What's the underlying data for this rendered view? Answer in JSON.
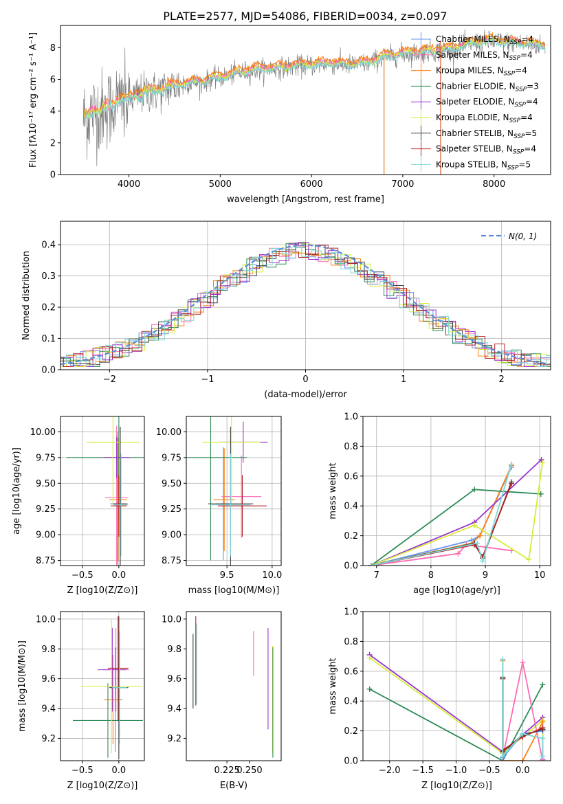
{
  "title": "PLATE=2577, MJD=54086, FIBERID=0034, z=0.097",
  "colors": {
    "chabrier_miles": "#6495ed",
    "salpeter_miles": "#ff69b4",
    "kroupa_miles": "#ff7f0e",
    "chabrier_elodie": "#2e8b57",
    "salpeter_elodie": "#9932cc",
    "kroupa_elodie": "#d4ed3a",
    "chabrier_stelib": "#404040",
    "salpeter_stelib": "#b22222",
    "kroupa_stelib": "#7fd6d6",
    "data": "#808080",
    "gaussian": "#5b8dd9"
  },
  "chart_data": [
    {
      "panel": "spectrum",
      "type": "line",
      "title": "PLATE=2577, MJD=54086, FIBERID=0034, z=0.097",
      "xlabel": "wavelength [Angstrom, rest frame]",
      "ylabel": "Flux [fλ10⁻¹⁷ erg cm⁻² s⁻¹ A⁻¹]",
      "xlim": [
        3250,
        8620
      ],
      "ylim": [
        0,
        9.4
      ],
      "xticks": [
        4000,
        5000,
        6000,
        7000,
        8000
      ],
      "yticks": [
        0,
        2,
        4,
        6,
        8
      ],
      "grid": false,
      "legend_position": "right",
      "legend": [
        {
          "label": "Chabrier MILES, N",
          "sub": "SSP",
          "tail": "=4",
          "key": "chabrier_miles"
        },
        {
          "label": "Salpeter MILES, N",
          "sub": "SSP",
          "tail": "=4",
          "key": "salpeter_miles"
        },
        {
          "label": "Kroupa MILES, N",
          "sub": "SSP",
          "tail": "=4",
          "key": "kroupa_miles"
        },
        {
          "label": "Chabrier ELODIE, N",
          "sub": "SSP",
          "tail": "=3",
          "key": "chabrier_elodie"
        },
        {
          "label": "Salpeter ELODIE, N",
          "sub": "SSP",
          "tail": "=4",
          "key": "salpeter_elodie"
        },
        {
          "label": "Kroupa ELODIE, N",
          "sub": "SSP",
          "tail": "=4",
          "key": "kroupa_elodie"
        },
        {
          "label": "Chabrier STELIB, N",
          "sub": "SSP",
          "tail": "=5",
          "key": "chabrier_stelib"
        },
        {
          "label": "Salpeter STELIB, N",
          "sub": "SSP",
          "tail": "=4",
          "key": "salpeter_stelib"
        },
        {
          "label": "Kroupa STELIB, N",
          "sub": "SSP",
          "tail": "=5",
          "key": "kroupa_stelib"
        }
      ],
      "continuum": [
        [
          3500,
          3.5
        ],
        [
          3600,
          3.9
        ],
        [
          3700,
          4.1
        ],
        [
          3800,
          4.3
        ],
        [
          3900,
          4.7
        ],
        [
          4000,
          4.7
        ],
        [
          4100,
          5.0
        ],
        [
          4200,
          5.2
        ],
        [
          4300,
          5.2
        ],
        [
          4400,
          5.4
        ],
        [
          4500,
          5.6
        ],
        [
          4600,
          5.7
        ],
        [
          4700,
          5.8
        ],
        [
          4800,
          5.8
        ],
        [
          4900,
          6.0
        ],
        [
          5000,
          6.1
        ],
        [
          5200,
          6.4
        ],
        [
          5400,
          6.6
        ],
        [
          5600,
          6.7
        ],
        [
          5800,
          6.8
        ],
        [
          6000,
          6.9
        ],
        [
          6200,
          7.0
        ],
        [
          6400,
          6.9
        ],
        [
          6600,
          7.0
        ],
        [
          6800,
          7.4
        ],
        [
          7000,
          7.6
        ],
        [
          7200,
          7.7
        ],
        [
          7400,
          7.8
        ],
        [
          7600,
          8.0
        ],
        [
          7800,
          8.3
        ],
        [
          8000,
          8.4
        ],
        [
          8200,
          8.3
        ],
        [
          8400,
          8.2
        ],
        [
          8550,
          8.1
        ]
      ]
    },
    {
      "panel": "residuals",
      "type": "line",
      "xlabel": "(data-model)/error",
      "ylabel": "Normed distribution",
      "xlim": [
        -2.5,
        2.5
      ],
      "ylim": [
        0,
        0.475
      ],
      "xticks": [
        -2,
        -1,
        0,
        1,
        2
      ],
      "yticks": [
        0.0,
        0.1,
        0.2,
        0.3,
        0.4
      ],
      "grid": true,
      "legend_position": "upper right",
      "gaussian_label": "N(0, 1)",
      "bin_width": 0.1
    },
    {
      "panel": "age_vs_Z",
      "type": "scatter",
      "xlabel": "Z [log10(Z/Z⊙)]",
      "ylabel": "age  [log10(age/yr)]",
      "xlim": [
        -0.8,
        0.35
      ],
      "ylim": [
        8.7,
        10.15
      ],
      "xticks": [
        -0.5,
        0.0
      ],
      "yticks": [
        8.75,
        9.0,
        9.25,
        9.5,
        9.75,
        10.0
      ],
      "grid": true,
      "points": [
        {
          "key": "chabrier_miles",
          "x": -0.02,
          "y": 9.3,
          "xerr": 0.1,
          "yerr": 0.7
        },
        {
          "key": "salpeter_miles",
          "x": -0.03,
          "y": 9.36,
          "xerr": 0.16,
          "yerr": 0.7
        },
        {
          "key": "kroupa_miles",
          "x": -0.01,
          "y": 9.34,
          "xerr": 0.12,
          "yerr": 0.6
        },
        {
          "key": "chabrier_elodie",
          "x": 0.0,
          "y": 9.75,
          "xerr": 0.72,
          "yerr": 0.6
        },
        {
          "key": "salpeter_elodie",
          "x": -0.03,
          "y": 9.75,
          "xerr": 0.18,
          "yerr": 0.2
        },
        {
          "key": "kroupa_elodie",
          "x": -0.08,
          "y": 9.9,
          "xerr": 0.36,
          "yerr": 0.6
        },
        {
          "key": "chabrier_stelib",
          "x": 0.02,
          "y": 9.3,
          "xerr": 0.1,
          "yerr": 0.75
        },
        {
          "key": "salpeter_stelib",
          "x": 0.0,
          "y": 9.28,
          "xerr": 0.11,
          "yerr": 0.3
        },
        {
          "key": "kroupa_stelib",
          "x": 0.03,
          "y": 9.29,
          "xerr": 0.1,
          "yerr": 0.5
        }
      ]
    },
    {
      "panel": "age_vs_mass",
      "type": "scatter",
      "xlabel": "mass [log10(M/M⊙)]",
      "ylabel": "",
      "xlim": [
        9.05,
        10.1
      ],
      "ylim": [
        8.7,
        10.15
      ],
      "xticks": [
        9.5,
        10.0
      ],
      "yticks": [
        8.75,
        9.0,
        9.25,
        9.5,
        9.75,
        10.0
      ],
      "grid": true,
      "points": [
        {
          "key": "chabrier_miles",
          "x": 9.46,
          "y": 9.3,
          "xerr": 0.08,
          "yerr": 0.55
        },
        {
          "key": "salpeter_miles",
          "x": 9.66,
          "y": 9.37,
          "xerr": 0.22,
          "yerr": 0.4
        },
        {
          "key": "kroupa_miles",
          "x": 9.47,
          "y": 9.34,
          "xerr": 0.12,
          "yerr": 0.5
        },
        {
          "key": "chabrier_elodie",
          "x": 9.32,
          "y": 9.75,
          "xerr": 0.4,
          "yerr": 1.0
        },
        {
          "key": "salpeter_elodie",
          "x": 9.68,
          "y": 9.9,
          "xerr": 0.27,
          "yerr": 0.2
        },
        {
          "key": "kroupa_elodie",
          "x": 9.55,
          "y": 9.9,
          "xerr": 0.32,
          "yerr": 0.6
        },
        {
          "key": "chabrier_stelib",
          "x": 9.54,
          "y": 9.3,
          "xerr": 0.25,
          "yerr": 0.75
        },
        {
          "key": "salpeter_stelib",
          "x": 9.67,
          "y": 9.28,
          "xerr": 0.27,
          "yerr": 0.3
        },
        {
          "key": "kroupa_stelib",
          "x": 9.54,
          "y": 9.29,
          "xerr": 0.22,
          "yerr": 0.5
        }
      ]
    },
    {
      "panel": "weight_vs_age",
      "type": "line",
      "xlabel": "age  [log10(age/yr)]",
      "ylabel": "mass weight",
      "xlim": [
        6.75,
        10.2
      ],
      "ylim": [
        0,
        1.0
      ],
      "xticks": [
        7,
        8,
        9,
        10
      ],
      "yticks": [
        0.0,
        0.2,
        0.4,
        0.6,
        0.8,
        1.0
      ],
      "grid": true,
      "series": [
        {
          "key": "chabrier_miles",
          "x": [
            6.9,
            8.75,
            8.9,
            9.48
          ],
          "y": [
            0.0,
            0.17,
            0.2,
            0.66
          ]
        },
        {
          "key": "salpeter_miles",
          "x": [
            6.9,
            8.5,
            8.65,
            9.48
          ],
          "y": [
            0.0,
            0.08,
            0.14,
            0.1
          ]
        },
        {
          "key": "kroupa_miles",
          "x": [
            6.9,
            8.75,
            8.9,
            9.48
          ],
          "y": [
            0.0,
            0.15,
            0.2,
            0.67
          ]
        },
        {
          "key": "chabrier_elodie",
          "x": [
            6.9,
            8.8,
            10.02
          ],
          "y": [
            0.0,
            0.51,
            0.48
          ]
        },
        {
          "key": "salpeter_elodie",
          "x": [
            6.9,
            8.8,
            10.03
          ],
          "y": [
            0.0,
            0.29,
            0.71
          ]
        },
        {
          "key": "kroupa_elodie",
          "x": [
            6.9,
            8.8,
            9.8,
            10.05
          ],
          "y": [
            0.0,
            0.27,
            0.04,
            0.69
          ]
        },
        {
          "key": "chabrier_stelib",
          "x": [
            6.9,
            8.8,
            8.95,
            9.48
          ],
          "y": [
            0.0,
            0.15,
            0.05,
            0.56
          ]
        },
        {
          "key": "salpeter_stelib",
          "x": [
            6.9,
            8.8,
            8.95,
            9.48
          ],
          "y": [
            0.0,
            0.14,
            0.06,
            0.55
          ]
        },
        {
          "key": "kroupa_stelib",
          "x": [
            6.9,
            8.85,
            8.95,
            9.48
          ],
          "y": [
            0.0,
            0.15,
            0.03,
            0.68
          ]
        }
      ]
    },
    {
      "panel": "mass_vs_Z",
      "type": "scatter",
      "xlabel": "Z [log10(Z/Z⊙)]",
      "ylabel": "mass [log10(M/M⊙)]",
      "xlim": [
        -0.8,
        0.35
      ],
      "ylim": [
        9.05,
        10.05
      ],
      "xticks": [
        -0.5,
        0.0
      ],
      "yticks": [
        9.2,
        9.4,
        9.6,
        9.8,
        10.0
      ],
      "grid": true,
      "points": [
        {
          "key": "chabrier_miles",
          "x": -0.05,
          "y": 9.46,
          "xerr": 0.1,
          "yerr": 0.35
        },
        {
          "key": "salpeter_miles",
          "x": -0.04,
          "y": 9.66,
          "xerr": 0.18,
          "yerr": 0.28
        },
        {
          "key": "kroupa_miles",
          "x": -0.08,
          "y": 9.46,
          "xerr": 0.12,
          "yerr": 0.3
        },
        {
          "key": "chabrier_elodie",
          "x": -0.15,
          "y": 9.32,
          "xerr": 0.48,
          "yerr": 0.25
        },
        {
          "key": "salpeter_elodie",
          "x": -0.09,
          "y": 9.66,
          "xerr": 0.2,
          "yerr": 0.28
        },
        {
          "key": "kroupa_elodie",
          "x": -0.1,
          "y": 9.55,
          "xerr": 0.42,
          "yerr": 0.45
        },
        {
          "key": "chabrier_stelib",
          "x": 0.0,
          "y": 9.54,
          "xerr": 0.13,
          "yerr": 0.48
        },
        {
          "key": "salpeter_stelib",
          "x": -0.01,
          "y": 9.67,
          "xerr": 0.14,
          "yerr": 0.35
        },
        {
          "key": "kroupa_stelib",
          "x": 0.01,
          "y": 9.54,
          "xerr": 0.1,
          "yerr": 0.38
        }
      ]
    },
    {
      "panel": "mass_vs_EBV",
      "type": "scatter",
      "xlabel": "E(B-V)",
      "ylabel": "",
      "xlim": [
        0.18,
        0.285
      ],
      "ylim": [
        9.05,
        10.05
      ],
      "xticks": [
        0.225,
        0.25
      ],
      "yticks": [
        9.2,
        9.4,
        9.6,
        9.8,
        10.0
      ],
      "grid": false,
      "points": [
        {
          "key": "chabrier_stelib",
          "x": 0.1875,
          "y": 9.65,
          "yerr": 0.25
        },
        {
          "key": "salpeter_stelib",
          "x": 0.1905,
          "y": 9.72,
          "yerr": 0.3
        },
        {
          "key": "kroupa_stelib",
          "x": 0.1915,
          "y": 9.7,
          "yerr": 0.27
        },
        {
          "key": "salpeter_miles",
          "x": 0.2545,
          "y": 9.77,
          "yerr": 0.15
        },
        {
          "key": "salpeter_elodie",
          "x": 0.2705,
          "y": 9.6,
          "yerr": 0.34
        },
        {
          "key": "kroupa_elodie",
          "x": 0.2755,
          "y": 9.46,
          "yerr": 0.36
        },
        {
          "key": "chabrier_elodie",
          "x": 0.2758,
          "y": 9.44,
          "yerr": 0.37
        }
      ]
    },
    {
      "panel": "weight_vs_Z",
      "type": "line",
      "xlabel": "Z [log10(Z/Z⊙)]",
      "ylabel": "mass weight",
      "xlim": [
        -2.4,
        0.42
      ],
      "ylim": [
        0,
        1.0
      ],
      "xticks": [
        -2.0,
        -1.5,
        -1.0,
        -0.5,
        0.0
      ],
      "yticks": [
        0.0,
        0.2,
        0.4,
        0.6,
        0.8,
        1.0
      ],
      "grid": true,
      "series": [
        {
          "key": "salpeter_elodie",
          "x": [
            -2.3,
            -0.3,
            0.3,
            0.3
          ],
          "y": [
            0.71,
            0.06,
            0.29,
            0.01
          ]
        },
        {
          "key": "kroupa_elodie",
          "x": [
            -2.3,
            -0.3,
            0.3,
            0.3
          ],
          "y": [
            0.69,
            0.05,
            0.27,
            0.0
          ]
        },
        {
          "key": "chabrier_elodie",
          "x": [
            -2.3,
            -0.3,
            0.3
          ],
          "y": [
            0.48,
            0.0,
            0.51
          ]
        },
        {
          "key": "kroupa_miles",
          "x": [
            -0.3,
            -0.3,
            0.0,
            0.3
          ],
          "y": [
            0.67,
            0.0,
            0.0,
            0.26
          ]
        },
        {
          "key": "salpeter_miles",
          "x": [
            -0.3,
            0.0,
            0.3
          ],
          "y": [
            0.02,
            0.66,
            0.0
          ]
        },
        {
          "key": "chabrier_miles",
          "x": [
            -0.3,
            -0.3,
            0.0,
            0.3
          ],
          "y": [
            0.55,
            0.02,
            0.18,
            0.2
          ]
        },
        {
          "key": "chabrier_stelib",
          "x": [
            -0.3,
            -0.3,
            0.0,
            0.3
          ],
          "y": [
            0.56,
            0.06,
            0.17,
            0.21
          ]
        },
        {
          "key": "salpeter_stelib",
          "x": [
            -0.3,
            -0.3,
            0.0,
            0.3
          ],
          "y": [
            0.55,
            0.07,
            0.16,
            0.22
          ]
        },
        {
          "key": "kroupa_stelib",
          "x": [
            -0.3,
            -0.3,
            0.0,
            0.3,
            0.3
          ],
          "y": [
            0.68,
            0.03,
            0.18,
            0.15,
            0.03
          ]
        }
      ]
    }
  ]
}
